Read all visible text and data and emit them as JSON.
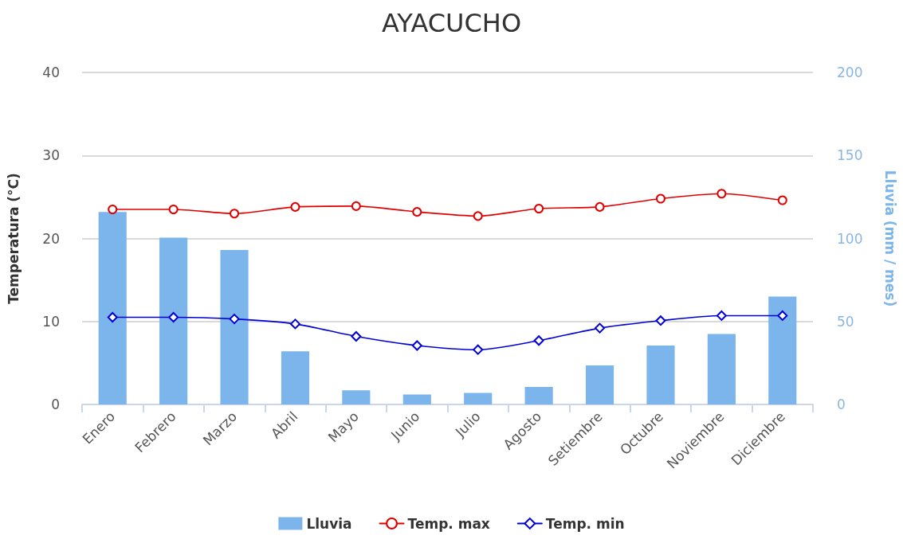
{
  "chart_data": {
    "type": "bar",
    "title": "AYACUCHO",
    "ylabel": "Temperatura (°C)",
    "y2label": "Lluvia (mm / mes)",
    "categories": [
      "Enero",
      "Febrero",
      "Marzo",
      "Abril",
      "Mayo",
      "Junio",
      "Julio",
      "Agosto",
      "Setiembre",
      "Octubre",
      "Noviembre",
      "Diciembre"
    ],
    "series": [
      {
        "name": "Lluvia",
        "axis": "y2",
        "color": "#7cb5ec",
        "values": [
          116,
          100.5,
          93,
          32,
          8.5,
          6,
          7,
          10.5,
          23.5,
          35.5,
          42.5,
          65
        ]
      },
      {
        "name": "Temp. max",
        "type": "line",
        "marker": "circle",
        "color": "#e00000",
        "values": [
          23.5,
          23.5,
          23.0,
          23.8,
          23.9,
          23.2,
          22.7,
          23.6,
          23.8,
          24.8,
          25.4,
          24.6
        ]
      },
      {
        "name": "Temp. min",
        "type": "line",
        "marker": "diamond",
        "color": "#0000d8",
        "values": [
          10.5,
          10.5,
          10.3,
          9.7,
          8.2,
          7.1,
          6.6,
          7.7,
          9.2,
          10.1,
          10.7,
          10.7
        ]
      }
    ],
    "ylim": [
      0,
      40
    ],
    "yticks": [
      0,
      10,
      20,
      30,
      40
    ],
    "y2lim": [
      0,
      200
    ],
    "y2ticks": [
      0,
      50,
      100,
      150,
      200
    ],
    "grid": "y",
    "legend": "bottom"
  }
}
